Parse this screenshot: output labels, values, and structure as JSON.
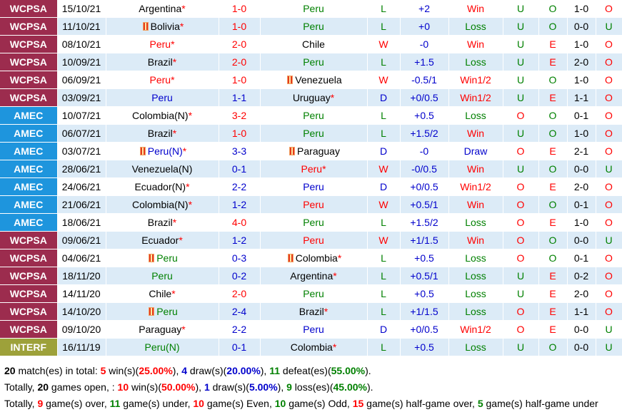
{
  "colors": {
    "wcpsa": "#9c2c4e",
    "amec": "#1e95dd",
    "interf": "#9da13a",
    "row_alt": "#dcebf7",
    "win": "#ff0000",
    "loss": "#008000",
    "draw": "#0000cc",
    "accent_blue": "#0000cc"
  },
  "rows": [
    {
      "league": "WCPSA",
      "date": "15/10/21",
      "home": "Argentina",
      "home_star": "*",
      "home_color": "black",
      "home_flag": false,
      "score": "1-0",
      "score_color": "red",
      "away": "Peru",
      "away_star": "",
      "away_color": "green",
      "away_flag": false,
      "result": "L",
      "handicap": "+2",
      "hcp_result": "Win",
      "hcp_color": "red",
      "ou": "U",
      "ht_ou": "O",
      "ht_score": "1-0",
      "ht_result": "O",
      "ht_res_color": "red"
    },
    {
      "league": "WCPSA",
      "date": "11/10/21",
      "home": "Bolivia",
      "home_star": "*",
      "home_color": "black",
      "home_flag": true,
      "score": "1-0",
      "score_color": "red",
      "away": "Peru",
      "away_star": "",
      "away_color": "green",
      "away_flag": false,
      "result": "L",
      "handicap": "+0",
      "hcp_result": "Loss",
      "hcp_color": "green",
      "ou": "U",
      "ht_ou": "O",
      "ht_score": "0-0",
      "ht_result": "U",
      "ht_res_color": "green"
    },
    {
      "league": "WCPSA",
      "date": "08/10/21",
      "home": "Peru",
      "home_star": "*",
      "home_color": "red",
      "home_flag": false,
      "score": "2-0",
      "score_color": "red",
      "away": "Chile",
      "away_star": "",
      "away_color": "black",
      "away_flag": false,
      "result": "W",
      "handicap": "-0",
      "hcp_result": "Win",
      "hcp_color": "red",
      "ou": "U",
      "ht_ou": "E",
      "ht_score": "1-0",
      "ht_result": "O",
      "ht_res_color": "red"
    },
    {
      "league": "WCPSA",
      "date": "10/09/21",
      "home": "Brazil",
      "home_star": "*",
      "home_color": "black",
      "home_flag": false,
      "score": "2-0",
      "score_color": "red",
      "away": "Peru",
      "away_star": "",
      "away_color": "green",
      "away_flag": false,
      "result": "L",
      "handicap": "+1.5",
      "hcp_result": "Loss",
      "hcp_color": "green",
      "ou": "U",
      "ht_ou": "E",
      "ht_score": "2-0",
      "ht_result": "O",
      "ht_res_color": "red"
    },
    {
      "league": "WCPSA",
      "date": "06/09/21",
      "home": "Peru",
      "home_star": "*",
      "home_color": "red",
      "home_flag": false,
      "score": "1-0",
      "score_color": "red",
      "away": "Venezuela",
      "away_star": "",
      "away_color": "black",
      "away_flag": true,
      "result": "W",
      "handicap": "-0.5/1",
      "hcp_result": "Win1/2",
      "hcp_color": "red",
      "ou": "U",
      "ht_ou": "O",
      "ht_score": "1-0",
      "ht_result": "O",
      "ht_res_color": "red"
    },
    {
      "league": "WCPSA",
      "date": "03/09/21",
      "home": "Peru",
      "home_star": "",
      "home_color": "blue",
      "home_flag": false,
      "score": "1-1",
      "score_color": "blue",
      "away": "Uruguay",
      "away_star": "*",
      "away_color": "black",
      "away_flag": false,
      "result": "D",
      "handicap": "+0/0.5",
      "hcp_result": "Win1/2",
      "hcp_color": "red",
      "ou": "U",
      "ht_ou": "E",
      "ht_score": "1-1",
      "ht_result": "O",
      "ht_res_color": "red"
    },
    {
      "league": "AMEC",
      "date": "10/07/21",
      "home": "Colombia(N)",
      "home_star": "*",
      "home_color": "black",
      "home_flag": false,
      "score": "3-2",
      "score_color": "red",
      "away": "Peru",
      "away_star": "",
      "away_color": "green",
      "away_flag": false,
      "result": "L",
      "handicap": "+0.5",
      "hcp_result": "Loss",
      "hcp_color": "green",
      "ou": "O",
      "ht_ou": "O",
      "ht_score": "0-1",
      "ht_result": "O",
      "ht_res_color": "red"
    },
    {
      "league": "AMEC",
      "date": "06/07/21",
      "home": "Brazil",
      "home_star": "*",
      "home_color": "black",
      "home_flag": false,
      "score": "1-0",
      "score_color": "red",
      "away": "Peru",
      "away_star": "",
      "away_color": "green",
      "away_flag": false,
      "result": "L",
      "handicap": "+1.5/2",
      "hcp_result": "Win",
      "hcp_color": "red",
      "ou": "U",
      "ht_ou": "O",
      "ht_score": "1-0",
      "ht_result": "O",
      "ht_res_color": "red"
    },
    {
      "league": "AMEC",
      "date": "03/07/21",
      "home": "Peru(N)",
      "home_star": "*",
      "home_color": "blue",
      "home_flag": true,
      "score": "3-3",
      "score_color": "blue",
      "away": "Paraguay",
      "away_star": "",
      "away_color": "black",
      "away_flag": true,
      "result": "D",
      "handicap": "-0",
      "hcp_result": "Draw",
      "hcp_color": "blue",
      "ou": "O",
      "ht_ou": "E",
      "ht_score": "2-1",
      "ht_result": "O",
      "ht_res_color": "red"
    },
    {
      "league": "AMEC",
      "date": "28/06/21",
      "home": "Venezuela(N)",
      "home_star": "",
      "home_color": "black",
      "home_flag": false,
      "score": "0-1",
      "score_color": "blue",
      "away": "Peru",
      "away_star": "*",
      "away_color": "red",
      "away_flag": false,
      "result": "W",
      "handicap": "-0/0.5",
      "hcp_result": "Win",
      "hcp_color": "red",
      "ou": "U",
      "ht_ou": "O",
      "ht_score": "0-0",
      "ht_result": "U",
      "ht_res_color": "green"
    },
    {
      "league": "AMEC",
      "date": "24/06/21",
      "home": "Ecuador(N)",
      "home_star": "*",
      "home_color": "black",
      "home_flag": false,
      "score": "2-2",
      "score_color": "blue",
      "away": "Peru",
      "away_star": "",
      "away_color": "blue",
      "away_flag": false,
      "result": "D",
      "handicap": "+0/0.5",
      "hcp_result": "Win1/2",
      "hcp_color": "red",
      "ou": "O",
      "ht_ou": "E",
      "ht_score": "2-0",
      "ht_result": "O",
      "ht_res_color": "red"
    },
    {
      "league": "AMEC",
      "date": "21/06/21",
      "home": "Colombia(N)",
      "home_star": "*",
      "home_color": "black",
      "home_flag": false,
      "score": "1-2",
      "score_color": "blue",
      "away": "Peru",
      "away_star": "",
      "away_color": "red",
      "away_flag": false,
      "result": "W",
      "handicap": "+0.5/1",
      "hcp_result": "Win",
      "hcp_color": "red",
      "ou": "O",
      "ht_ou": "O",
      "ht_score": "0-1",
      "ht_result": "O",
      "ht_res_color": "red"
    },
    {
      "league": "AMEC",
      "date": "18/06/21",
      "home": "Brazil",
      "home_star": "*",
      "home_color": "black",
      "home_flag": false,
      "score": "4-0",
      "score_color": "red",
      "away": "Peru",
      "away_star": "",
      "away_color": "green",
      "away_flag": false,
      "result": "L",
      "handicap": "+1.5/2",
      "hcp_result": "Loss",
      "hcp_color": "green",
      "ou": "O",
      "ht_ou": "E",
      "ht_score": "1-0",
      "ht_result": "O",
      "ht_res_color": "red"
    },
    {
      "league": "WCPSA",
      "date": "09/06/21",
      "home": "Ecuador",
      "home_star": "*",
      "home_color": "black",
      "home_flag": false,
      "score": "1-2",
      "score_color": "blue",
      "away": "Peru",
      "away_star": "",
      "away_color": "red",
      "away_flag": false,
      "result": "W",
      "handicap": "+1/1.5",
      "hcp_result": "Win",
      "hcp_color": "red",
      "ou": "O",
      "ht_ou": "O",
      "ht_score": "0-0",
      "ht_result": "U",
      "ht_res_color": "green"
    },
    {
      "league": "WCPSA",
      "date": "04/06/21",
      "home": "Peru",
      "home_star": "",
      "home_color": "green",
      "home_flag": true,
      "score": "0-3",
      "score_color": "blue",
      "away": "Colombia",
      "away_star": "*",
      "away_color": "black",
      "away_flag": true,
      "result": "L",
      "handicap": "+0.5",
      "hcp_result": "Loss",
      "hcp_color": "green",
      "ou": "O",
      "ht_ou": "O",
      "ht_score": "0-1",
      "ht_result": "O",
      "ht_res_color": "red"
    },
    {
      "league": "WCPSA",
      "date": "18/11/20",
      "home": "Peru",
      "home_star": "",
      "home_color": "green",
      "home_flag": false,
      "score": "0-2",
      "score_color": "blue",
      "away": "Argentina",
      "away_star": "*",
      "away_color": "black",
      "away_flag": false,
      "result": "L",
      "handicap": "+0.5/1",
      "hcp_result": "Loss",
      "hcp_color": "green",
      "ou": "U",
      "ht_ou": "E",
      "ht_score": "0-2",
      "ht_result": "O",
      "ht_res_color": "red"
    },
    {
      "league": "WCPSA",
      "date": "14/11/20",
      "home": "Chile",
      "home_star": "*",
      "home_color": "black",
      "home_flag": false,
      "score": "2-0",
      "score_color": "red",
      "away": "Peru",
      "away_star": "",
      "away_color": "green",
      "away_flag": false,
      "result": "L",
      "handicap": "+0.5",
      "hcp_result": "Loss",
      "hcp_color": "green",
      "ou": "U",
      "ht_ou": "E",
      "ht_score": "2-0",
      "ht_result": "O",
      "ht_res_color": "red"
    },
    {
      "league": "WCPSA",
      "date": "14/10/20",
      "home": "Peru",
      "home_star": "",
      "home_color": "green",
      "home_flag": true,
      "score": "2-4",
      "score_color": "blue",
      "away": "Brazil",
      "away_star": "*",
      "away_color": "black",
      "away_flag": false,
      "result": "L",
      "handicap": "+1/1.5",
      "hcp_result": "Loss",
      "hcp_color": "green",
      "ou": "O",
      "ht_ou": "E",
      "ht_score": "1-1",
      "ht_result": "O",
      "ht_res_color": "red"
    },
    {
      "league": "WCPSA",
      "date": "09/10/20",
      "home": "Paraguay",
      "home_star": "*",
      "home_color": "black",
      "home_flag": false,
      "score": "2-2",
      "score_color": "blue",
      "away": "Peru",
      "away_star": "",
      "away_color": "blue",
      "away_flag": false,
      "result": "D",
      "handicap": "+0/0.5",
      "hcp_result": "Win1/2",
      "hcp_color": "red",
      "ou": "O",
      "ht_ou": "E",
      "ht_score": "0-0",
      "ht_result": "U",
      "ht_res_color": "green"
    },
    {
      "league": "INTERF",
      "date": "16/11/19",
      "home": "Peru(N)",
      "home_star": "",
      "home_color": "green",
      "home_flag": false,
      "score": "0-1",
      "score_color": "blue",
      "away": "Colombia",
      "away_star": "*",
      "away_color": "black",
      "away_flag": false,
      "result": "L",
      "handicap": "+0.5",
      "hcp_result": "Loss",
      "hcp_color": "green",
      "ou": "U",
      "ht_ou": "O",
      "ht_score": "0-0",
      "ht_result": "U",
      "ht_res_color": "green"
    }
  ],
  "summary": {
    "line1": {
      "total": "20",
      "t1": " match(es) in total: ",
      "wins": "5",
      "t2": " win(s)(",
      "win_pct": "25.00%",
      "t3": "), ",
      "draws": "4",
      "t4": " draw(s)(",
      "draw_pct": "20.00%",
      "t5": "), ",
      "defeats": "11",
      "t6": " defeat(es)(",
      "defeat_pct": "55.00%",
      "t7": ")."
    },
    "line2": {
      "t0": "Totally, ",
      "open": "20",
      "t1": " games open, : ",
      "wins": "10",
      "t2": " win(s)(",
      "win_pct": "50.00%",
      "t3": "), ",
      "draws": "1",
      "t4": " draw(s)(",
      "draw_pct": "5.00%",
      "t5": "), ",
      "losses": "9",
      "t6": " loss(es)(",
      "loss_pct": "45.00%",
      "t7": ")."
    },
    "line3": {
      "t0": "Totally, ",
      "over": "9",
      "t1": " game(s) over, ",
      "under": "11",
      "t2": " game(s) under, ",
      "even": "10",
      "t3": " game(s) Even, ",
      "odd": "10",
      "t4": " game(s) Odd, ",
      "ht_over": "15",
      "t5": " game(s) half-game over, ",
      "ht_under": "5",
      "t6": " game(s) half-game under"
    }
  }
}
